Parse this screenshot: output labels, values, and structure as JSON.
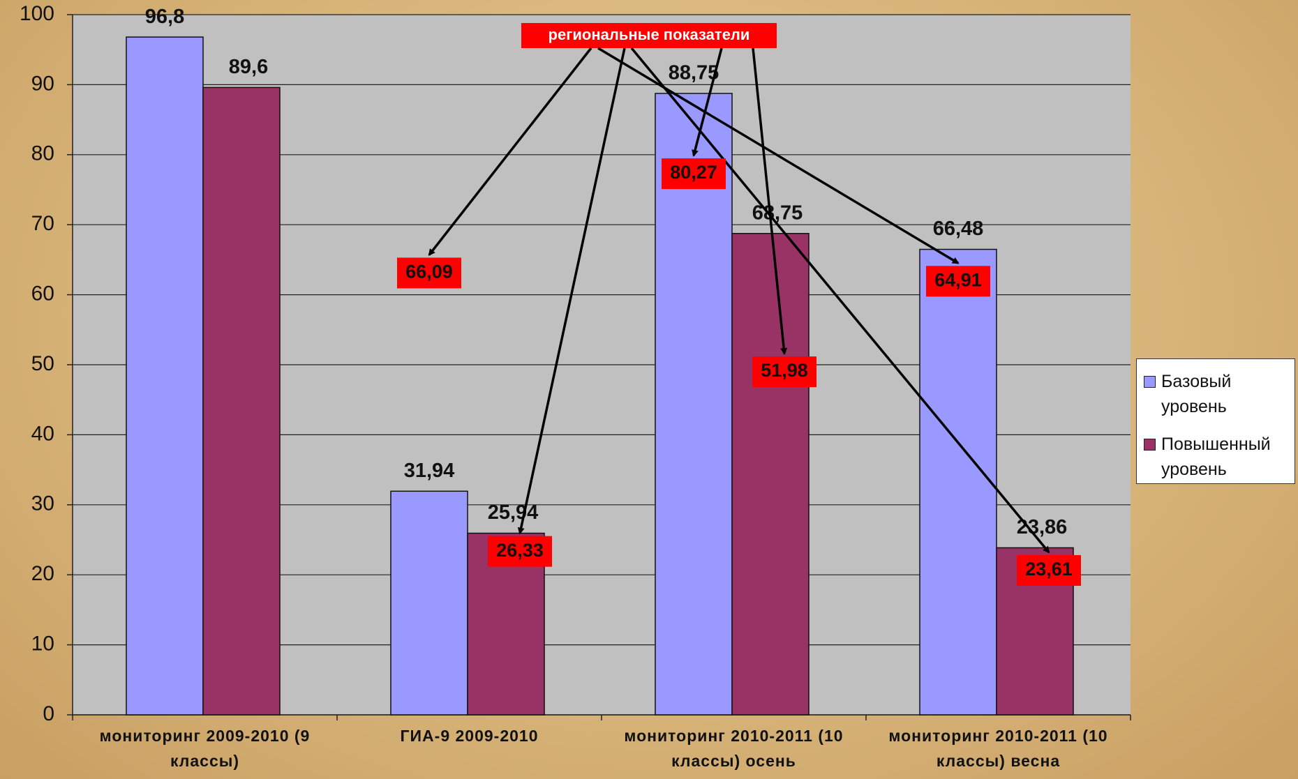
{
  "chart_data": {
    "type": "bar",
    "categories": [
      "мониторинг 2009-2010 (9 классы)",
      "ГИА-9 2009-2010",
      "мониторинг 2010-2011 (10 классы) осень",
      "мониторинг 2010-2011 (10 классы) весна"
    ],
    "series": [
      {
        "name": "Базовый уровень",
        "color": "#9999ff",
        "values": [
          96.8,
          31.94,
          88.75,
          66.48
        ],
        "value_labels": [
          "96,8",
          "31,94",
          "88,75",
          "66,48"
        ],
        "regional_values": [
          null,
          66.09,
          80.27,
          64.91
        ],
        "regional_value_labels": [
          null,
          "66,09",
          "80,27",
          "64,91"
        ]
      },
      {
        "name": "Повышенный уровень",
        "color": "#993366",
        "values": [
          89.6,
          25.94,
          68.75,
          23.86
        ],
        "value_labels": [
          "89,6",
          "25,94",
          "68,75",
          "23,86"
        ],
        "regional_values": [
          null,
          26.33,
          51.98,
          23.61
        ],
        "regional_value_labels": [
          null,
          "26,33",
          "51,98",
          "23,61"
        ]
      }
    ],
    "annotation": "региональные показатели",
    "ylim": [
      0,
      100
    ],
    "yticks": [
      0,
      10,
      20,
      30,
      40,
      50,
      60,
      70,
      80,
      90,
      100
    ],
    "grid": true,
    "legend": "right"
  }
}
